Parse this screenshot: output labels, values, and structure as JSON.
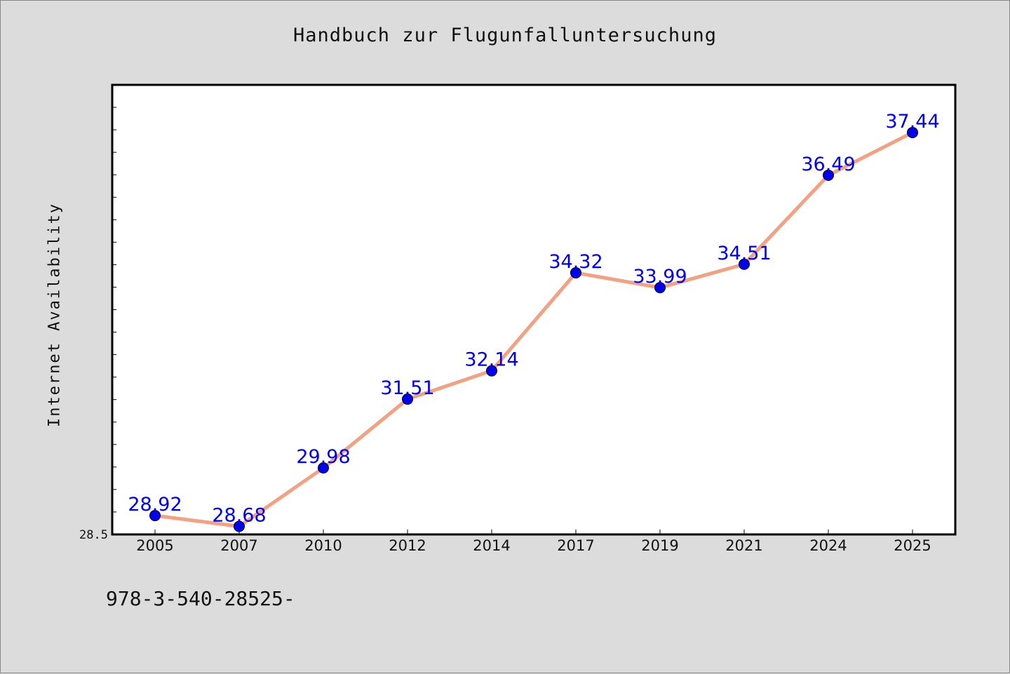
{
  "header": {
    "title": "Handbuch zur Flugunfalluntersuchung"
  },
  "footer": {
    "code": "978-3-540-28525-"
  },
  "colors": {
    "background": "#dcdcdc",
    "plot_background": "#ffffff",
    "line": "#f4a082",
    "marker": "#0000ee",
    "data_label": "#0000ee"
  },
  "chart_data": {
    "type": "line",
    "title": "Handbuch zur Flugunfalluntersuchung",
    "xlabel": "",
    "ylabel": "Internet Availability",
    "categories": [
      "2005",
      "2007",
      "2010",
      "2012",
      "2014",
      "2017",
      "2019",
      "2021",
      "2024",
      "2025"
    ],
    "series": [
      {
        "values": [
          28.92,
          28.68,
          29.98,
          31.51,
          32.14,
          34.32,
          33.99,
          34.51,
          36.49,
          37.44
        ],
        "labels": [
          "28.92",
          "28.68",
          "29.98",
          "31.51",
          "32.14",
          "34.32",
          "33.99",
          "34.51",
          "36.49",
          "37.44"
        ]
      }
    ],
    "ylim": [
      28.5,
      38.5
    ],
    "y_tick_labels": [
      "28.5"
    ],
    "grid": false,
    "legend": "none"
  }
}
